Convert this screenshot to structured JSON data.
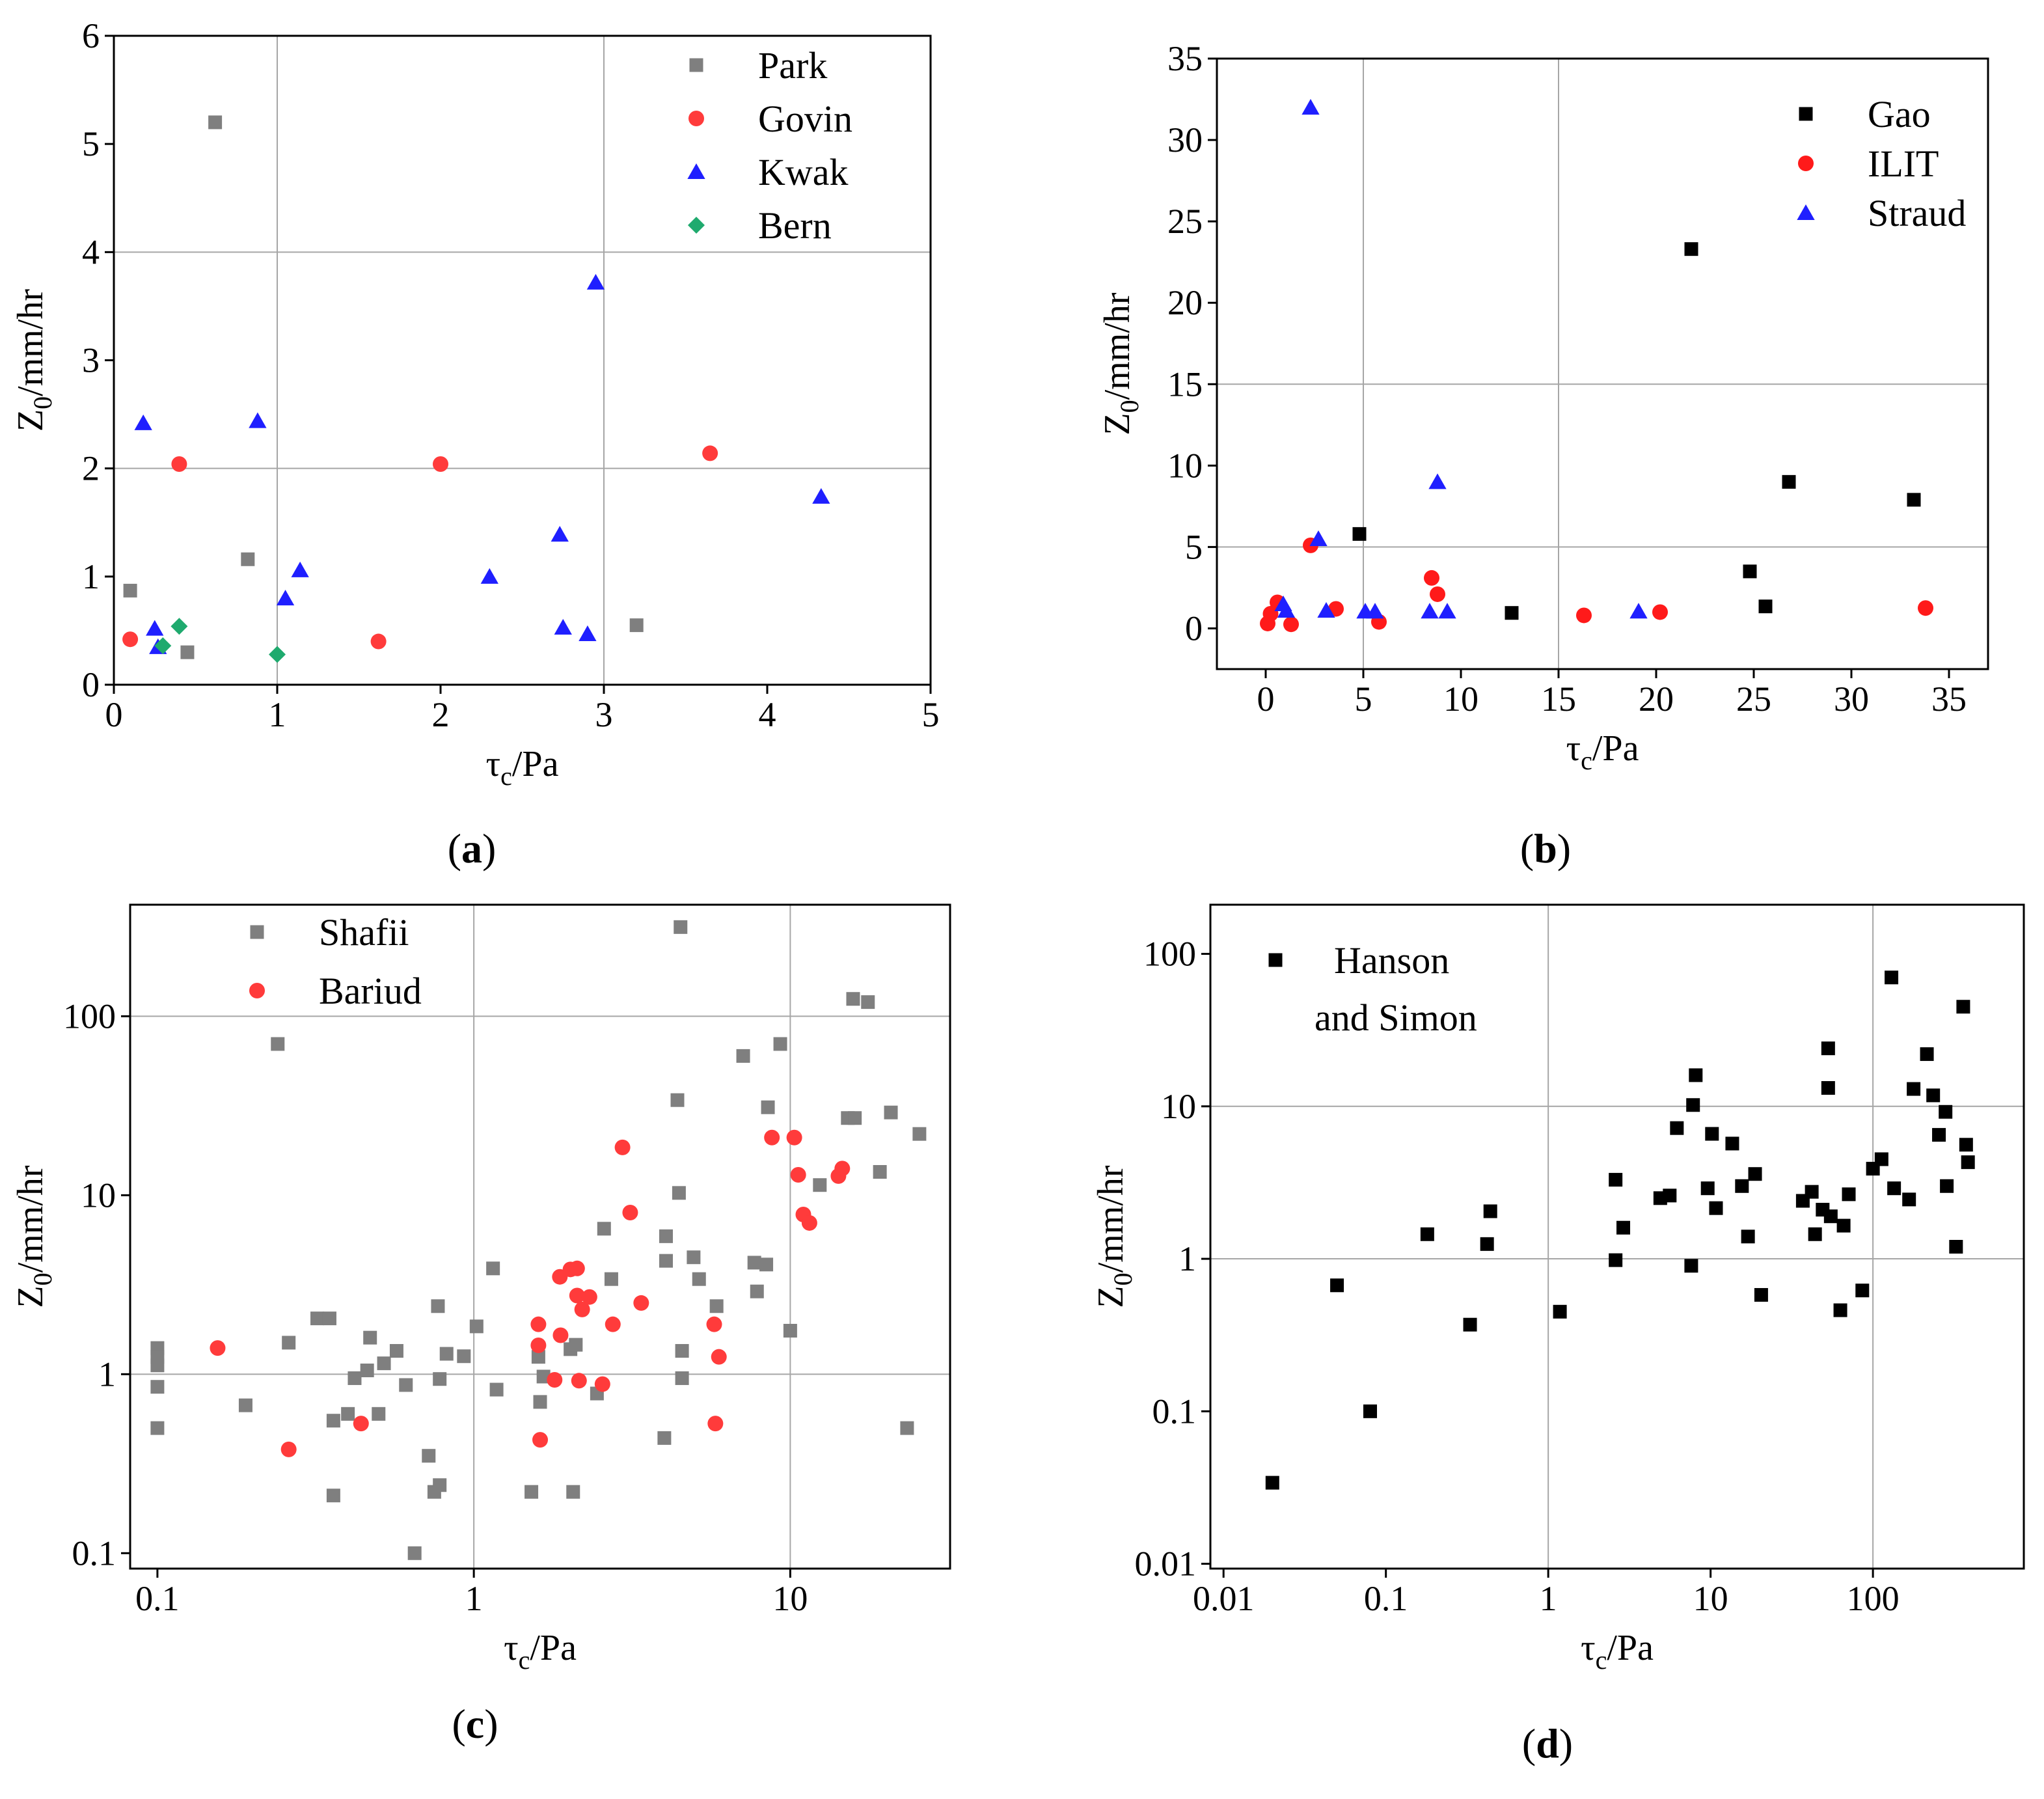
{
  "figure_colors": {
    "gray": "#7f7f7f",
    "red": "#ff3b3b",
    "blue": "#1f1fff",
    "green": "#1faa6e",
    "black": "#000000"
  },
  "chart_data": [
    {
      "id": "a",
      "type": "scatter",
      "panel_label": "(a)",
      "title": "",
      "xlabel": {
        "main": "τ",
        "sub": "c",
        "rest": "/Pa"
      },
      "ylabel": {
        "main": "Z",
        "sub": "0",
        "rest": "/mm/hr"
      },
      "xscale": "linear",
      "yscale": "linear",
      "xlim": [
        0,
        5
      ],
      "ylim": [
        0,
        6
      ],
      "xticks": [
        0,
        1,
        2,
        3,
        4,
        5
      ],
      "xtick_labels": [
        "0",
        "1",
        "2",
        "3",
        "4",
        "5"
      ],
      "yticks": [
        0,
        1,
        2,
        3,
        4,
        5,
        6
      ],
      "ytick_labels": [
        "0",
        "1",
        "2",
        "3",
        "4",
        "5",
        "6"
      ],
      "grid_x": [
        1,
        3
      ],
      "grid_y": [
        2,
        4
      ],
      "legend_position": "top-right",
      "series": [
        {
          "name": "Park",
          "marker": "square",
          "color": "#7f7f7f",
          "points": [
            [
              0.1,
              0.87
            ],
            [
              0.62,
              5.2
            ],
            [
              0.45,
              0.3
            ],
            [
              0.82,
              1.16
            ],
            [
              3.2,
              0.55
            ]
          ]
        },
        {
          "name": "Govin",
          "marker": "circle",
          "color": "#ff3b3b",
          "points": [
            [
              0.1,
              0.42
            ],
            [
              0.4,
              2.04
            ],
            [
              2.0,
              2.04
            ],
            [
              1.62,
              0.4
            ],
            [
              3.65,
              2.14
            ]
          ]
        },
        {
          "name": "Kwak",
          "marker": "triangle",
          "color": "#1f1fff",
          "points": [
            [
              0.18,
              2.42
            ],
            [
              0.88,
              2.44
            ],
            [
              0.25,
              0.52
            ],
            [
              0.27,
              0.35
            ],
            [
              1.05,
              0.8
            ],
            [
              1.14,
              1.06
            ],
            [
              2.3,
              1.0
            ],
            [
              2.95,
              3.72
            ],
            [
              2.73,
              1.39
            ],
            [
              2.75,
              0.53
            ],
            [
              2.9,
              0.47
            ],
            [
              4.33,
              1.74
            ]
          ]
        },
        {
          "name": "Bern",
          "marker": "diamond",
          "color": "#1faa6e",
          "points": [
            [
              0.3,
              0.36
            ],
            [
              0.4,
              0.54
            ],
            [
              1.0,
              0.28
            ]
          ]
        }
      ]
    },
    {
      "id": "b",
      "type": "scatter",
      "panel_label": "(b)",
      "title": "",
      "xlabel": {
        "main": "τ",
        "sub": "c",
        "rest": "/Pa"
      },
      "ylabel": {
        "main": "Z",
        "sub": "0",
        "rest": "/mm/hr"
      },
      "xscale": "linear",
      "yscale": "linear",
      "xlim": [
        -2.5,
        37
      ],
      "ylim": [
        -2.5,
        35
      ],
      "xticks": [
        0,
        5,
        10,
        15,
        20,
        25,
        30,
        35
      ],
      "xtick_labels": [
        "0",
        "5",
        "10",
        "15",
        "20",
        "25",
        "30",
        "35"
      ],
      "yticks": [
        0,
        5,
        10,
        15,
        20,
        25,
        30,
        35
      ],
      "ytick_labels": [
        "0",
        "5",
        "10",
        "15",
        "20",
        "25",
        "30",
        "35"
      ],
      "grid_x": [
        5,
        15
      ],
      "grid_y": [
        5,
        15
      ],
      "legend_position": "top-right",
      "series": [
        {
          "name": "Gao",
          "marker": "square",
          "color": "#000000",
          "points": [
            [
              4.8,
              5.8
            ],
            [
              12.6,
              0.95
            ],
            [
              21.8,
              23.3
            ],
            [
              24.8,
              3.5
            ],
            [
              25.6,
              1.35
            ],
            [
              26.8,
              9.0
            ],
            [
              33.2,
              7.9
            ]
          ]
        },
        {
          "name": "ILIT",
          "marker": "circle",
          "color": "#ff1a1a",
          "points": [
            [
              0.1,
              0.3
            ],
            [
              0.25,
              0.9
            ],
            [
              0.6,
              1.6
            ],
            [
              1.3,
              0.25
            ],
            [
              2.3,
              5.1
            ],
            [
              3.6,
              1.2
            ],
            [
              5.8,
              0.4
            ],
            [
              8.5,
              3.1
            ],
            [
              8.8,
              2.1
            ],
            [
              16.3,
              0.8
            ],
            [
              20.2,
              1.0
            ],
            [
              33.8,
              1.25
            ]
          ]
        },
        {
          "name": "Straud",
          "marker": "triangle",
          "color": "#1f1fff",
          "points": [
            [
              2.3,
              32.0
            ],
            [
              2.7,
              5.5
            ],
            [
              0.9,
              1.5
            ],
            [
              1.05,
              1.1
            ],
            [
              3.1,
              1.1
            ],
            [
              5.1,
              1.05
            ],
            [
              5.6,
              1.05
            ],
            [
              8.4,
              1.05
            ],
            [
              8.8,
              9.0
            ],
            [
              9.3,
              1.05
            ],
            [
              19.1,
              1.05
            ]
          ]
        }
      ]
    },
    {
      "id": "c",
      "type": "scatter",
      "panel_label": "(c)",
      "title": "",
      "xlabel": {
        "main": "τ",
        "sub": "c",
        "rest": "/Pa"
      },
      "ylabel": {
        "main": "Z",
        "sub": "0",
        "rest": "/mm/hr"
      },
      "xscale": "log",
      "yscale": "log",
      "xlim": [
        0.082,
        32
      ],
      "ylim": [
        0.082,
        420
      ],
      "xticks": [
        0.1,
        1,
        10
      ],
      "xtick_labels": [
        "0.1",
        "1",
        "10"
      ],
      "yticks": [
        0.1,
        1,
        10,
        100
      ],
      "ytick_labels": [
        "0.1",
        "1",
        "10",
        "100"
      ],
      "grid_x": [
        1,
        10
      ],
      "grid_y": [
        1,
        100
      ],
      "legend_position": "top-left",
      "series": [
        {
          "name": "Shafii",
          "marker": "square",
          "color": "#7f7f7f",
          "points": [
            [
              0.1,
              1.4
            ],
            [
              0.1,
              1.25
            ],
            [
              0.1,
              1.12
            ],
            [
              0.1,
              0.85
            ],
            [
              0.1,
              0.5
            ],
            [
              0.19,
              0.67
            ],
            [
              0.24,
              70
            ],
            [
              0.26,
              1.5
            ],
            [
              0.32,
              2.05
            ],
            [
              0.35,
              2.05
            ],
            [
              0.36,
              0.55
            ],
            [
              0.36,
              0.21
            ],
            [
              0.4,
              0.6
            ],
            [
              0.42,
              0.95
            ],
            [
              0.46,
              1.05
            ],
            [
              0.47,
              1.6
            ],
            [
              0.5,
              0.6
            ],
            [
              0.52,
              1.15
            ],
            [
              0.57,
              1.35
            ],
            [
              0.61,
              0.87
            ],
            [
              0.65,
              0.1
            ],
            [
              0.72,
              0.35
            ],
            [
              0.75,
              0.22
            ],
            [
              0.77,
              2.4
            ],
            [
              0.78,
              0.94
            ],
            [
              0.78,
              0.24
            ],
            [
              0.82,
              1.3
            ],
            [
              0.93,
              1.26
            ],
            [
              1.02,
              1.85
            ],
            [
              1.15,
              3.9
            ],
            [
              1.18,
              0.82
            ],
            [
              1.52,
              0.22
            ],
            [
              1.6,
              1.25
            ],
            [
              1.62,
              0.7
            ],
            [
              1.66,
              0.97
            ],
            [
              2.02,
              1.38
            ],
            [
              2.06,
              0.22
            ],
            [
              2.1,
              1.46
            ],
            [
              2.45,
              0.78
            ],
            [
              2.58,
              6.5
            ],
            [
              2.72,
              3.4
            ],
            [
              4.0,
              0.44
            ],
            [
              4.05,
              5.9
            ],
            [
              4.05,
              4.3
            ],
            [
              4.4,
              34
            ],
            [
              4.45,
              10.3
            ],
            [
              4.5,
              315
            ],
            [
              4.55,
              1.35
            ],
            [
              4.55,
              0.95
            ],
            [
              4.95,
              4.5
            ],
            [
              5.15,
              3.4
            ],
            [
              5.85,
              2.4
            ],
            [
              7.1,
              60
            ],
            [
              7.7,
              4.2
            ],
            [
              7.85,
              2.9
            ],
            [
              8.4,
              4.1
            ],
            [
              8.5,
              31
            ],
            [
              9.3,
              70
            ],
            [
              10,
              1.75
            ],
            [
              12.4,
              11.4
            ],
            [
              15.2,
              27
            ],
            [
              15.8,
              125
            ],
            [
              16,
              27
            ],
            [
              17.6,
              120
            ],
            [
              19.2,
              13.5
            ],
            [
              20.8,
              29
            ],
            [
              23.4,
              0.5
            ],
            [
              25.6,
              22
            ]
          ]
        },
        {
          "name": "Bariud",
          "marker": "circle",
          "color": "#ff3b3b",
          "points": [
            [
              0.155,
              1.4
            ],
            [
              0.26,
              0.38
            ],
            [
              0.44,
              0.53
            ],
            [
              1.6,
              1.9
            ],
            [
              1.6,
              1.45
            ],
            [
              1.62,
              0.43
            ],
            [
              1.8,
              0.93
            ],
            [
              1.87,
              3.5
            ],
            [
              1.88,
              1.65
            ],
            [
              2.02,
              3.85
            ],
            [
              2.12,
              3.9
            ],
            [
              2.12,
              2.75
            ],
            [
              2.15,
              0.92
            ],
            [
              2.2,
              2.3
            ],
            [
              2.32,
              2.7
            ],
            [
              2.55,
              0.88
            ],
            [
              2.75,
              1.9
            ],
            [
              2.95,
              18.5
            ],
            [
              3.12,
              8.0
            ],
            [
              3.38,
              2.5
            ],
            [
              5.75,
              1.9
            ],
            [
              5.8,
              0.53
            ],
            [
              5.95,
              1.25
            ],
            [
              8.75,
              21
            ],
            [
              10.3,
              21
            ],
            [
              10.6,
              13
            ],
            [
              11,
              7.8
            ],
            [
              11.5,
              7.0
            ],
            [
              14.2,
              12.8
            ],
            [
              14.6,
              14.1
            ]
          ]
        }
      ]
    },
    {
      "id": "d",
      "type": "scatter",
      "panel_label": "(d)",
      "title": "",
      "xlabel": {
        "main": "τ",
        "sub": "c",
        "rest": "/Pa"
      },
      "ylabel": {
        "main": "Z",
        "sub": "0",
        "rest": "/mm/hr"
      },
      "xscale": "log",
      "yscale": "log",
      "xlim": [
        0.0083,
        850
      ],
      "ylim": [
        0.0093,
        210
      ],
      "xticks": [
        0.01,
        0.1,
        1,
        10,
        100
      ],
      "xtick_labels": [
        "0.01",
        "0.1",
        "1",
        "10",
        "100"
      ],
      "yticks": [
        0.01,
        0.1,
        1,
        10,
        100
      ],
      "ytick_labels": [
        "0.01",
        "0.1",
        "1",
        "10",
        "100"
      ],
      "grid_x": [
        1,
        100
      ],
      "grid_y": [
        1,
        10
      ],
      "legend_position": "top-left",
      "series": [
        {
          "name": "Hanson and Simon",
          "marker": "square",
          "color": "#000000",
          "points": [
            [
              0.02,
              0.034
            ],
            [
              0.05,
              0.67
            ],
            [
              0.08,
              0.1
            ],
            [
              0.18,
              1.45
            ],
            [
              0.33,
              0.37
            ],
            [
              0.42,
              1.25
            ],
            [
              0.44,
              2.05
            ],
            [
              1.18,
              0.45
            ],
            [
              2.6,
              3.3
            ],
            [
              2.6,
              0.98
            ],
            [
              2.9,
              1.6
            ],
            [
              4.9,
              2.5
            ],
            [
              5.6,
              2.6
            ],
            [
              6.2,
              7.2
            ],
            [
              7.6,
              0.9
            ],
            [
              7.8,
              10.2
            ],
            [
              8.1,
              16
            ],
            [
              9.6,
              2.9
            ],
            [
              10.2,
              6.6
            ],
            [
              10.8,
              2.15
            ],
            [
              13.6,
              5.7
            ],
            [
              15.6,
              3.0
            ],
            [
              17,
              1.4
            ],
            [
              18.8,
              3.6
            ],
            [
              20.5,
              0.58
            ],
            [
              37,
              2.4
            ],
            [
              42,
              2.75
            ],
            [
              44,
              1.45
            ],
            [
              49,
              2.1
            ],
            [
              53,
              24
            ],
            [
              53,
              13.2
            ],
            [
              55,
              1.9
            ],
            [
              63,
              0.46
            ],
            [
              66,
              1.65
            ],
            [
              71,
              2.65
            ],
            [
              86,
              0.62
            ],
            [
              100,
              3.9
            ],
            [
              113,
              4.5
            ],
            [
              130,
              70
            ],
            [
              135,
              2.9
            ],
            [
              167,
              2.45
            ],
            [
              178,
              13
            ],
            [
              215,
              22
            ],
            [
              235,
              11.8
            ],
            [
              255,
              6.5
            ],
            [
              280,
              9.2
            ],
            [
              285,
              3.0
            ],
            [
              325,
              1.2
            ],
            [
              360,
              45
            ],
            [
              375,
              5.6
            ],
            [
              385,
              4.3
            ]
          ]
        }
      ]
    }
  ]
}
